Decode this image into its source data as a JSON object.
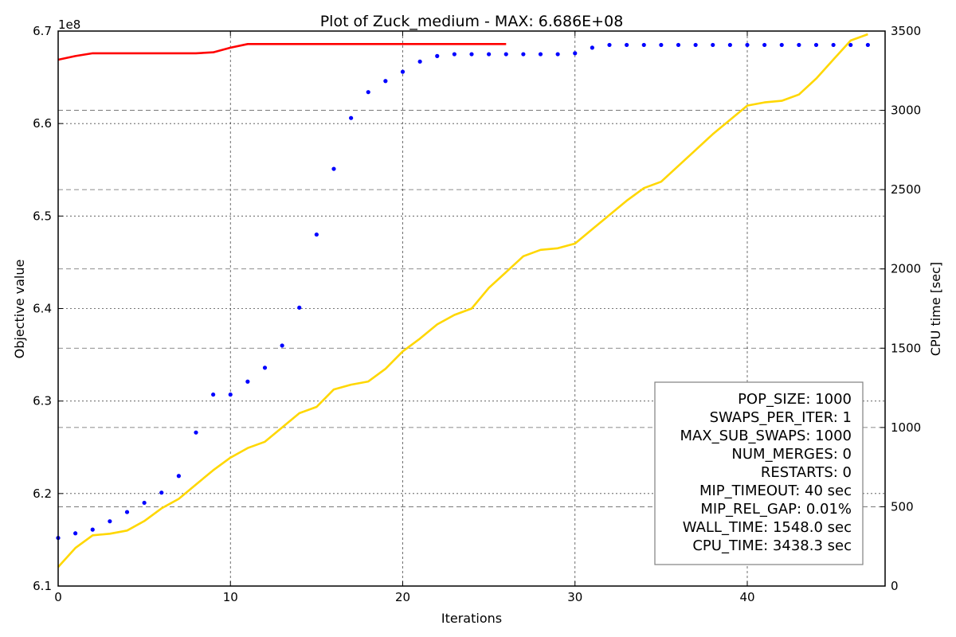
{
  "chart_data": {
    "type": "line",
    "title": "Plot of Zuck_medium - MAX: 6.686E+08",
    "xlabel": "Iterations",
    "ylabel": "Objective value",
    "y2label": "CPU time [sec]",
    "y_offset_label": "1e8",
    "xlim": [
      0,
      48
    ],
    "ylim": [
      6.1,
      6.7
    ],
    "y2lim": [
      0,
      3500
    ],
    "x_ticks": [
      0,
      10,
      20,
      30,
      40
    ],
    "y_ticks": [
      6.1,
      6.2,
      6.3,
      6.4,
      6.5,
      6.6,
      6.7
    ],
    "y_tick_labels": [
      "6.1",
      "6.2",
      "6.3",
      "6.4",
      "6.5",
      "6.6",
      "6.7"
    ],
    "y2_ticks": [
      0,
      500,
      1000,
      1500,
      2000,
      2500,
      3000,
      3500
    ],
    "grid": true,
    "series": [
      {
        "axis": "left",
        "style": "line",
        "color": "#ff0000",
        "x": [
          0,
          1,
          2,
          3,
          4,
          5,
          6,
          7,
          8,
          9,
          10,
          11,
          12,
          13,
          14,
          15,
          16,
          17,
          18,
          19,
          20,
          21,
          22,
          23,
          24,
          25,
          26
        ],
        "values": [
          6.669,
          6.673,
          6.676,
          6.676,
          6.676,
          6.676,
          6.676,
          6.676,
          6.676,
          6.677,
          6.682,
          6.686,
          6.686,
          6.686,
          6.686,
          6.686,
          6.686,
          6.686,
          6.686,
          6.686,
          6.686,
          6.686,
          6.686,
          6.686,
          6.686,
          6.686,
          6.686
        ]
      },
      {
        "axis": "left",
        "style": "points",
        "color": "#0000ff",
        "x": [
          0,
          1,
          2,
          3,
          4,
          5,
          6,
          7,
          8,
          9,
          10,
          11,
          12,
          13,
          14,
          15,
          16,
          17,
          18,
          19,
          20,
          21,
          22,
          23,
          24,
          25,
          26,
          27,
          28,
          29,
          30,
          31,
          32,
          33,
          34,
          35,
          36,
          37,
          38,
          39,
          40,
          41,
          42,
          43,
          44,
          45,
          46,
          47
        ],
        "values": [
          6.152,
          6.157,
          6.161,
          6.17,
          6.18,
          6.19,
          6.201,
          6.219,
          6.266,
          6.307,
          6.307,
          6.321,
          6.336,
          6.36,
          6.401,
          6.48,
          6.551,
          6.606,
          6.634,
          6.646,
          6.656,
          6.667,
          6.673,
          6.675,
          6.675,
          6.675,
          6.675,
          6.675,
          6.675,
          6.675,
          6.676,
          6.682,
          6.685,
          6.685,
          6.685,
          6.685,
          6.685,
          6.685,
          6.685,
          6.685,
          6.685,
          6.685,
          6.685,
          6.685,
          6.685,
          6.685,
          6.685,
          6.685
        ]
      },
      {
        "axis": "right",
        "style": "line",
        "color": "#ffd700",
        "x": [
          0,
          1,
          2,
          3,
          4,
          5,
          6,
          7,
          8,
          9,
          10,
          11,
          12,
          13,
          14,
          15,
          16,
          17,
          18,
          19,
          20,
          21,
          22,
          23,
          24,
          25,
          26,
          27,
          28,
          29,
          30,
          31,
          32,
          33,
          34,
          35,
          36,
          37,
          38,
          39,
          40,
          41,
          42,
          43,
          44,
          45,
          46,
          47
        ],
        "values": [
          120,
          240,
          320,
          330,
          350,
          410,
          490,
          550,
          640,
          730,
          810,
          870,
          910,
          1000,
          1090,
          1130,
          1240,
          1270,
          1290,
          1370,
          1480,
          1560,
          1650,
          1710,
          1750,
          1880,
          1980,
          2080,
          2120,
          2130,
          2160,
          2250,
          2340,
          2430,
          2510,
          2550,
          2650,
          2750,
          2850,
          2940,
          3030,
          3050,
          3060,
          3100,
          3200,
          3320,
          3440,
          3480
        ]
      }
    ],
    "legend_placement": "bottom-right",
    "annotation_box": [
      "POP_SIZE: 1000",
      "SWAPS_PER_ITER: 1",
      "MAX_SUB_SWAPS: 1000",
      "NUM_MERGES: 0",
      "RESTARTS: 0",
      "MIP_TIMEOUT: 40 sec",
      "MIP_REL_GAP: 0.01%",
      "WALL_TIME: 1548.0 sec",
      "CPU_TIME: 3438.3 sec"
    ]
  }
}
